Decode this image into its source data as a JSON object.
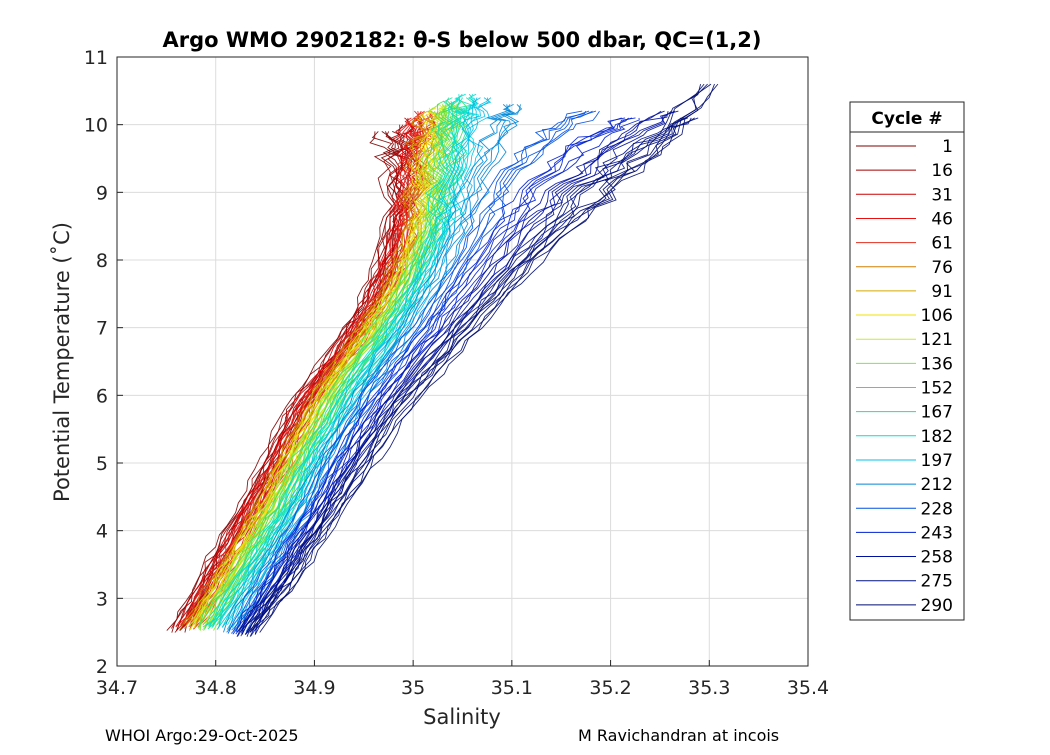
{
  "chart_data": {
    "type": "line",
    "title": "Argo WMO 2902182: θ-S below 500 dbar,  QC=(1,2)",
    "xlabel": "Salinity",
    "ylabel": "Potential Temperature (˚C)",
    "xlim": [
      34.7,
      35.4
    ],
    "ylim": [
      2,
      11
    ],
    "xticks": [
      "34.7",
      "34.8",
      "34.9",
      "35",
      "35.1",
      "35.2",
      "35.3",
      "35.4"
    ],
    "yticks": [
      "2",
      "3",
      "4",
      "5",
      "6",
      "7",
      "8",
      "9",
      "10",
      "11"
    ],
    "grid": true,
    "legend": {
      "title": "Cycle #",
      "placement": "right-outside",
      "entries": [
        {
          "label": "1",
          "color": "#800000"
        },
        {
          "label": "16",
          "color": "#a50000"
        },
        {
          "label": "31",
          "color": "#cc0000"
        },
        {
          "label": "46",
          "color": "#e81010"
        },
        {
          "label": "61",
          "color": "#e03020"
        },
        {
          "label": "76",
          "color": "#d08000"
        },
        {
          "label": "91",
          "color": "#d4a800"
        },
        {
          "label": "106",
          "color": "#f0e000"
        },
        {
          "label": "121",
          "color": "#c8ec30"
        },
        {
          "label": "136",
          "color": "#80e840"
        },
        {
          "label": "152",
          "color": "#40e060"
        },
        {
          "label": "167",
          "color": "#20e0a0"
        },
        {
          "label": "182",
          "color": "#00e0d0"
        },
        {
          "label": "197",
          "color": "#00c0e8"
        },
        {
          "label": "212",
          "color": "#0088d8"
        },
        {
          "label": "228",
          "color": "#0050e0"
        },
        {
          "label": "243",
          "color": "#0020d0"
        },
        {
          "label": "258",
          "color": "#0010a0"
        },
        {
          "label": "275",
          "color": "#001080"
        },
        {
          "label": "290",
          "color": "#000c70"
        }
      ]
    },
    "series": [
      {
        "cycle": "1",
        "color": "#800000",
        "points": [
          [
            34.76,
            2.5
          ],
          [
            34.79,
            3.3
          ],
          [
            34.82,
            4.1
          ],
          [
            34.85,
            4.9
          ],
          [
            34.88,
            5.8
          ],
          [
            34.92,
            6.6
          ],
          [
            34.95,
            7.3
          ],
          [
            34.97,
            8.0
          ],
          [
            34.98,
            8.8
          ],
          [
            34.98,
            9.5
          ],
          [
            34.97,
            9.9
          ]
        ]
      },
      {
        "cycle": "16",
        "color": "#a50000",
        "points": [
          [
            34.765,
            2.55
          ],
          [
            34.795,
            3.35
          ],
          [
            34.825,
            4.15
          ],
          [
            34.855,
            4.95
          ],
          [
            34.885,
            5.85
          ],
          [
            34.925,
            6.65
          ],
          [
            34.955,
            7.35
          ],
          [
            34.975,
            8.05
          ],
          [
            34.985,
            8.8
          ],
          [
            34.99,
            9.6
          ],
          [
            34.995,
            10.0
          ]
        ]
      },
      {
        "cycle": "31",
        "color": "#cc0000",
        "points": [
          [
            34.77,
            2.6
          ],
          [
            34.8,
            3.4
          ],
          [
            34.83,
            4.2
          ],
          [
            34.86,
            5.0
          ],
          [
            34.89,
            5.9
          ],
          [
            34.93,
            6.7
          ],
          [
            34.96,
            7.4
          ],
          [
            34.98,
            8.1
          ],
          [
            34.99,
            8.9
          ],
          [
            35.0,
            9.7
          ],
          [
            35.0,
            10.1
          ]
        ]
      },
      {
        "cycle": "46",
        "color": "#e81010",
        "points": [
          [
            34.77,
            2.55
          ],
          [
            34.805,
            3.45
          ],
          [
            34.835,
            4.25
          ],
          [
            34.865,
            5.05
          ],
          [
            34.895,
            5.95
          ],
          [
            34.935,
            6.75
          ],
          [
            34.965,
            7.45
          ],
          [
            34.985,
            8.15
          ],
          [
            34.995,
            8.95
          ],
          [
            35.0,
            9.65
          ],
          [
            35.01,
            10.2
          ]
        ]
      },
      {
        "cycle": "61",
        "color": "#e03020",
        "points": [
          [
            34.775,
            2.6
          ],
          [
            34.81,
            3.5
          ],
          [
            34.84,
            4.3
          ],
          [
            34.87,
            5.1
          ],
          [
            34.9,
            6.0
          ],
          [
            34.94,
            6.8
          ],
          [
            34.97,
            7.5
          ],
          [
            34.99,
            8.2
          ],
          [
            35.0,
            9.0
          ],
          [
            35.005,
            9.7
          ],
          [
            35.01,
            10.1
          ]
        ]
      },
      {
        "cycle": "76",
        "color": "#d08000",
        "points": [
          [
            34.775,
            2.55
          ],
          [
            34.81,
            3.45
          ],
          [
            34.845,
            4.3
          ],
          [
            34.875,
            5.15
          ],
          [
            34.905,
            6.05
          ],
          [
            34.945,
            6.85
          ],
          [
            34.975,
            7.55
          ],
          [
            34.995,
            8.25
          ],
          [
            35.005,
            9.05
          ],
          [
            35.01,
            9.75
          ],
          [
            35.015,
            10.15
          ]
        ]
      },
      {
        "cycle": "91",
        "color": "#d4a800",
        "points": [
          [
            34.78,
            2.6
          ],
          [
            34.815,
            3.5
          ],
          [
            34.85,
            4.35
          ],
          [
            34.88,
            5.2
          ],
          [
            34.91,
            6.1
          ],
          [
            34.95,
            6.9
          ],
          [
            34.98,
            7.6
          ],
          [
            35.0,
            8.3
          ],
          [
            35.01,
            9.1
          ],
          [
            35.015,
            9.8
          ],
          [
            35.02,
            10.2
          ]
        ]
      },
      {
        "cycle": "106",
        "color": "#f0e000",
        "points": [
          [
            34.78,
            2.55
          ],
          [
            34.815,
            3.45
          ],
          [
            34.85,
            4.3
          ],
          [
            34.88,
            5.2
          ],
          [
            34.915,
            6.1
          ],
          [
            34.955,
            6.9
          ],
          [
            34.985,
            7.6
          ],
          [
            35.005,
            8.35
          ],
          [
            35.015,
            9.15
          ],
          [
            35.02,
            9.85
          ],
          [
            35.025,
            10.25
          ]
        ]
      },
      {
        "cycle": "121",
        "color": "#c8ec30",
        "points": [
          [
            34.785,
            2.6
          ],
          [
            34.82,
            3.5
          ],
          [
            34.855,
            4.35
          ],
          [
            34.885,
            5.25
          ],
          [
            34.92,
            6.15
          ],
          [
            34.96,
            6.95
          ],
          [
            34.99,
            7.65
          ],
          [
            35.01,
            8.4
          ],
          [
            35.02,
            9.2
          ],
          [
            35.03,
            9.9
          ],
          [
            35.035,
            10.3
          ]
        ]
      },
      {
        "cycle": "136",
        "color": "#80e840",
        "points": [
          [
            34.79,
            2.55
          ],
          [
            34.825,
            3.45
          ],
          [
            34.86,
            4.3
          ],
          [
            34.89,
            5.2
          ],
          [
            34.925,
            6.1
          ],
          [
            34.965,
            6.95
          ],
          [
            34.995,
            7.7
          ],
          [
            35.015,
            8.4
          ],
          [
            35.025,
            9.2
          ],
          [
            35.03,
            9.9
          ],
          [
            35.035,
            10.3
          ]
        ]
      },
      {
        "cycle": "152",
        "color": "#40e060",
        "points": [
          [
            34.79,
            2.6
          ],
          [
            34.83,
            3.5
          ],
          [
            34.865,
            4.35
          ],
          [
            34.895,
            5.25
          ],
          [
            34.93,
            6.15
          ],
          [
            34.97,
            7.0
          ],
          [
            35.0,
            7.75
          ],
          [
            35.02,
            8.45
          ],
          [
            35.03,
            9.25
          ],
          [
            35.035,
            9.95
          ],
          [
            35.04,
            10.35
          ]
        ]
      },
      {
        "cycle": "167",
        "color": "#20e0a0",
        "points": [
          [
            34.795,
            2.55
          ],
          [
            34.835,
            3.45
          ],
          [
            34.87,
            4.3
          ],
          [
            34.9,
            5.2
          ],
          [
            34.935,
            6.1
          ],
          [
            34.975,
            6.95
          ],
          [
            35.005,
            7.75
          ],
          [
            35.025,
            8.5
          ],
          [
            35.035,
            9.3
          ],
          [
            35.04,
            10.0
          ],
          [
            35.045,
            10.4
          ]
        ]
      },
      {
        "cycle": "182",
        "color": "#00e0d0",
        "points": [
          [
            34.8,
            2.6
          ],
          [
            34.84,
            3.5
          ],
          [
            34.875,
            4.35
          ],
          [
            34.905,
            5.25
          ],
          [
            34.94,
            6.15
          ],
          [
            34.98,
            7.0
          ],
          [
            35.01,
            7.8
          ],
          [
            35.03,
            8.55
          ],
          [
            35.04,
            9.35
          ],
          [
            35.05,
            10.05
          ],
          [
            35.055,
            10.45
          ]
        ]
      },
      {
        "cycle": "197",
        "color": "#00c0e8",
        "points": [
          [
            34.81,
            2.55
          ],
          [
            34.845,
            3.45
          ],
          [
            34.88,
            4.3
          ],
          [
            34.91,
            5.2
          ],
          [
            34.945,
            6.1
          ],
          [
            34.985,
            6.95
          ],
          [
            35.015,
            7.8
          ],
          [
            35.04,
            8.6
          ],
          [
            35.05,
            9.4
          ],
          [
            35.06,
            10.05
          ],
          [
            35.07,
            10.4
          ]
        ]
      },
      {
        "cycle": "212",
        "color": "#0088d8",
        "points": [
          [
            34.815,
            2.5
          ],
          [
            34.85,
            3.4
          ],
          [
            34.885,
            4.25
          ],
          [
            34.915,
            5.15
          ],
          [
            34.95,
            6.05
          ],
          [
            34.99,
            6.9
          ],
          [
            35.025,
            7.75
          ],
          [
            35.05,
            8.55
          ],
          [
            35.07,
            9.35
          ],
          [
            35.09,
            10.0
          ],
          [
            35.1,
            10.3
          ]
        ]
      },
      {
        "cycle": "228",
        "color": "#0050e0",
        "points": [
          [
            34.82,
            2.5
          ],
          [
            34.855,
            3.35
          ],
          [
            34.89,
            4.2
          ],
          [
            34.92,
            5.1
          ],
          [
            34.955,
            6.0
          ],
          [
            35.0,
            6.85
          ],
          [
            35.04,
            7.7
          ],
          [
            35.07,
            8.5
          ],
          [
            35.1,
            9.3
          ],
          [
            35.14,
            9.9
          ],
          [
            35.18,
            10.2
          ]
        ]
      },
      {
        "cycle": "243",
        "color": "#0020d0",
        "points": [
          [
            34.825,
            2.45
          ],
          [
            34.86,
            3.3
          ],
          [
            34.895,
            4.15
          ],
          [
            34.93,
            5.05
          ],
          [
            34.965,
            5.95
          ],
          [
            35.01,
            6.8
          ],
          [
            35.05,
            7.65
          ],
          [
            35.09,
            8.45
          ],
          [
            35.13,
            9.2
          ],
          [
            35.18,
            9.8
          ],
          [
            35.22,
            10.1
          ]
        ]
      },
      {
        "cycle": "258",
        "color": "#0010a0",
        "points": [
          [
            34.83,
            2.5
          ],
          [
            34.865,
            3.3
          ],
          [
            34.9,
            4.1
          ],
          [
            34.935,
            5.0
          ],
          [
            34.975,
            5.9
          ],
          [
            35.02,
            6.75
          ],
          [
            35.07,
            7.6
          ],
          [
            35.11,
            8.4
          ],
          [
            35.16,
            9.15
          ],
          [
            35.21,
            9.75
          ],
          [
            35.26,
            10.2
          ]
        ]
      },
      {
        "cycle": "275",
        "color": "#001080",
        "points": [
          [
            34.83,
            2.45
          ],
          [
            34.87,
            3.25
          ],
          [
            34.905,
            4.05
          ],
          [
            34.94,
            4.95
          ],
          [
            34.98,
            5.85
          ],
          [
            35.03,
            6.7
          ],
          [
            35.08,
            7.55
          ],
          [
            35.13,
            8.35
          ],
          [
            35.18,
            9.1
          ],
          [
            35.23,
            9.7
          ],
          [
            35.28,
            10.1
          ]
        ]
      },
      {
        "cycle": "290",
        "color": "#000c70",
        "points": [
          [
            34.835,
            2.5
          ],
          [
            34.875,
            3.25
          ],
          [
            34.91,
            4.05
          ],
          [
            34.95,
            4.9
          ],
          [
            34.99,
            5.8
          ],
          [
            35.04,
            6.65
          ],
          [
            35.09,
            7.5
          ],
          [
            35.14,
            8.3
          ],
          [
            35.2,
            9.05
          ],
          [
            35.25,
            9.7
          ],
          [
            35.3,
            10.6
          ]
        ]
      }
    ]
  },
  "footer": {
    "left": "WHOI Argo:29-Oct-2025",
    "right": "M Ravichandran at incois"
  }
}
